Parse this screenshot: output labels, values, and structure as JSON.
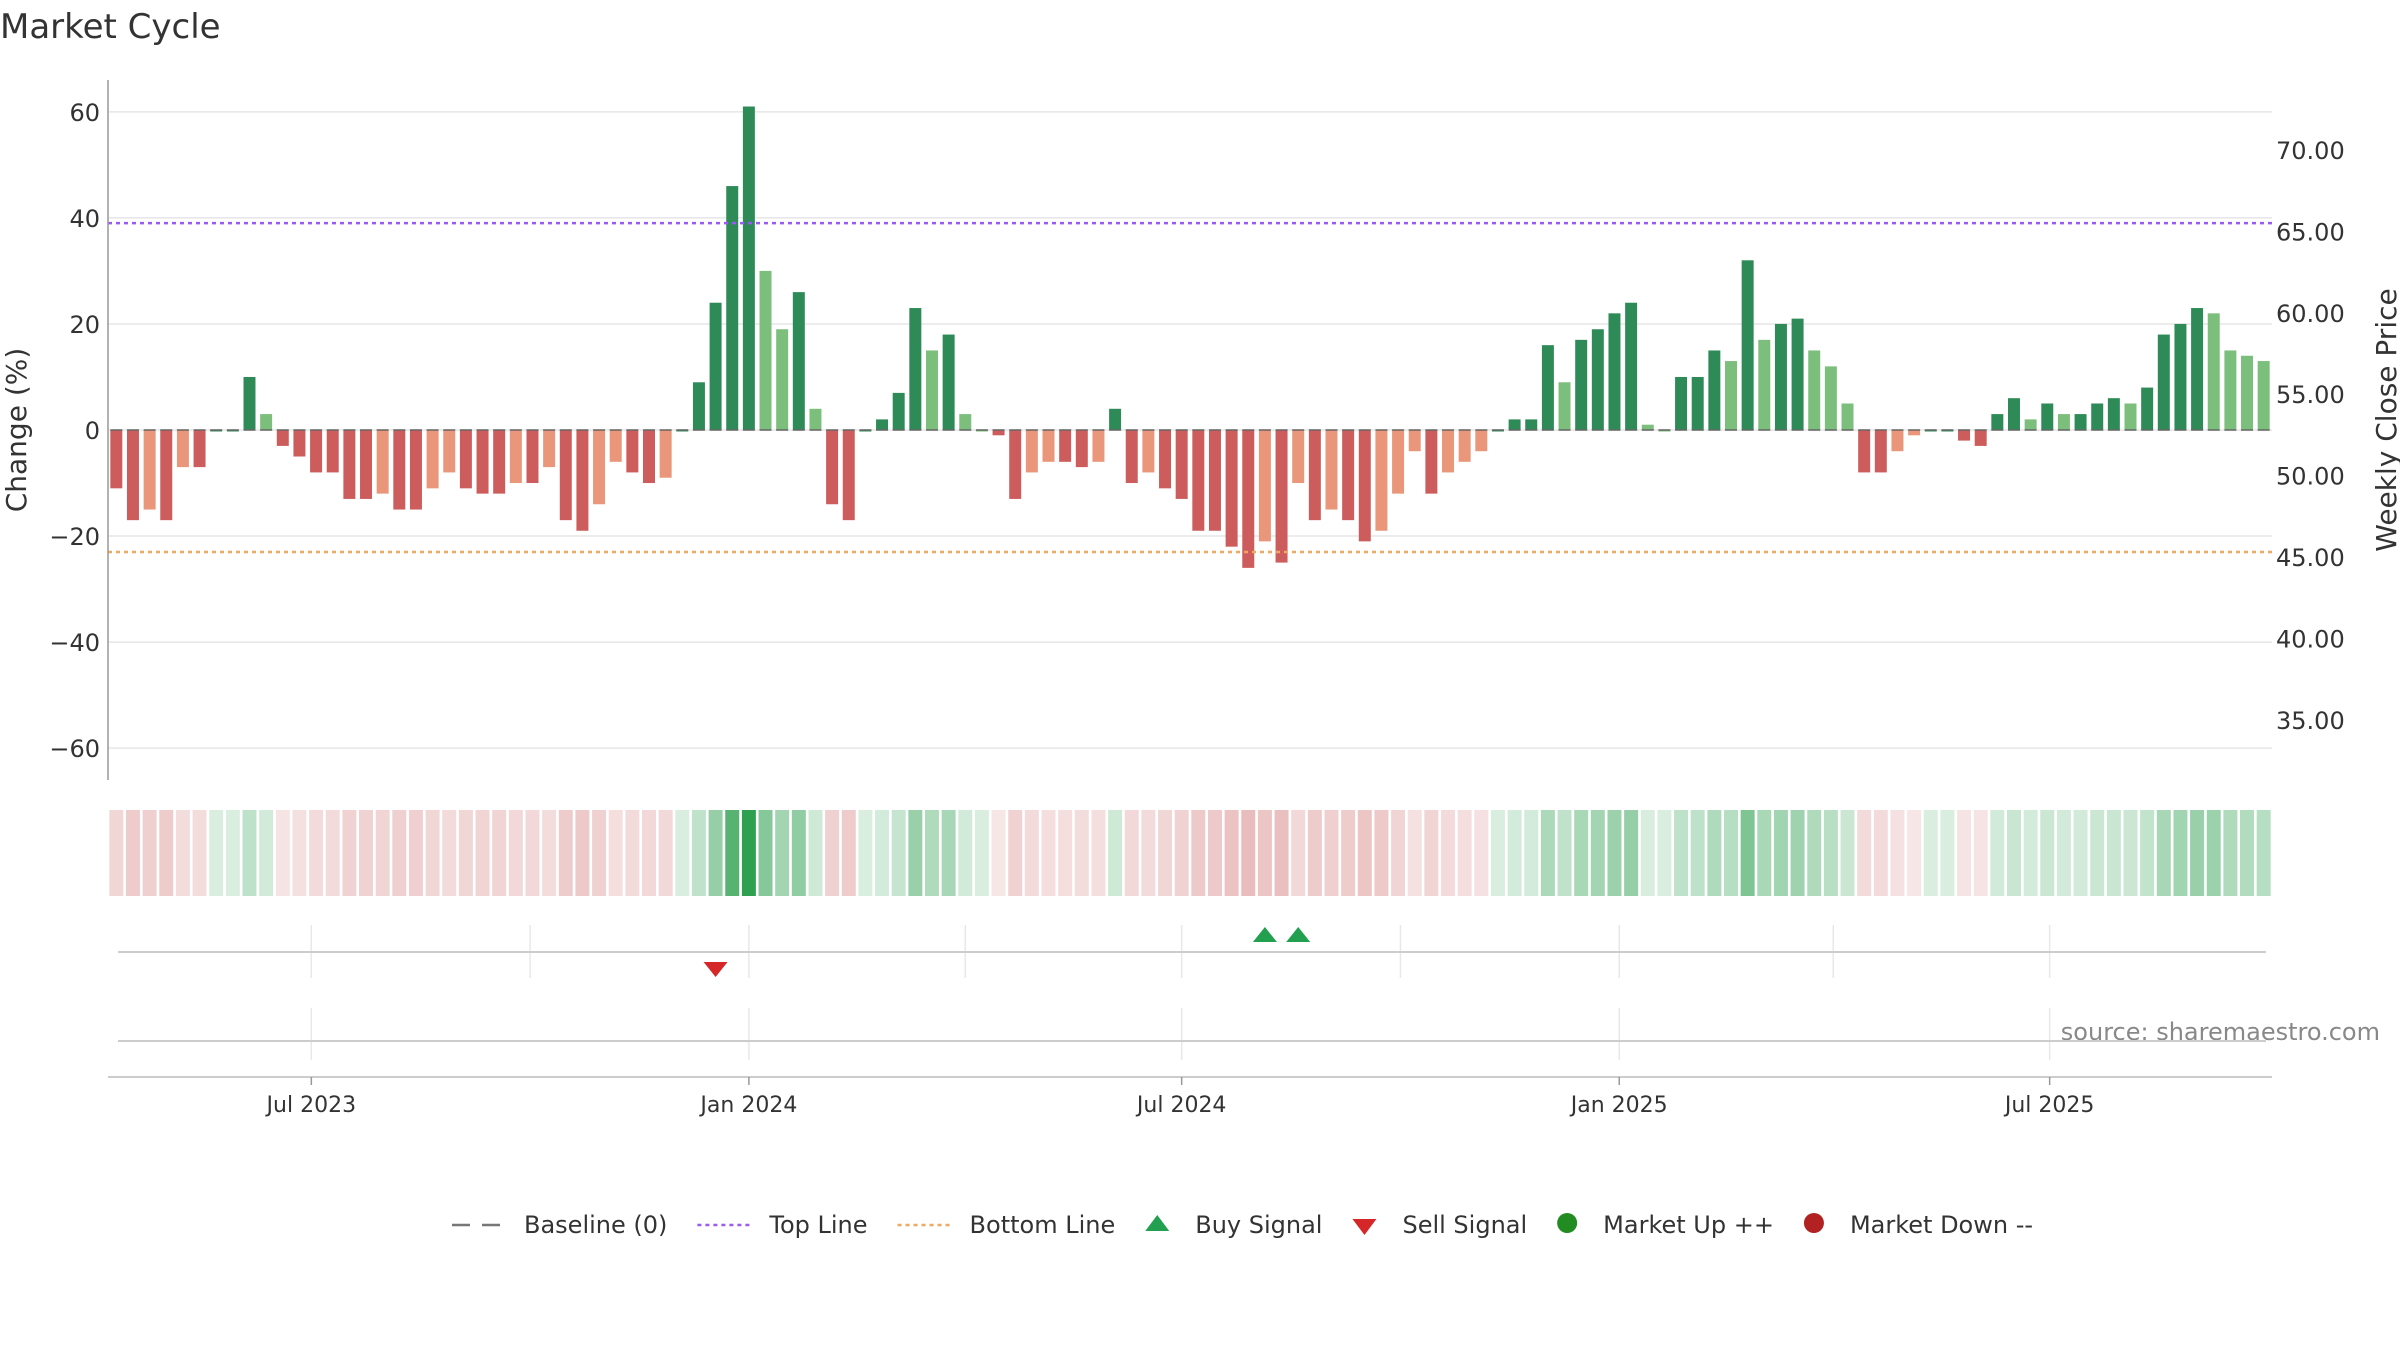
{
  "colors": {
    "strong_up": "#2e8b57",
    "light_up": "#7cbf7c",
    "strong_down": "#cd5c5c",
    "light_down": "#e9967a",
    "top_line": "#9b59f5",
    "bottom_line": "#f0a860",
    "buy": "#22a050",
    "sell": "#d62728",
    "market_up": "#228b22",
    "market_down": "#b22222",
    "grid": "#e6e6e6",
    "axis_text": "#333333"
  },
  "chart_data": {
    "type": "bar",
    "title": "Market Cycle",
    "ylabel": "Change (%)",
    "y2label": "Weekly Close Price",
    "ylim": [
      -66,
      66
    ],
    "y2lim": [
      31.3,
      74.3
    ],
    "yticks": [
      60,
      40,
      20,
      0,
      -20,
      -40,
      -60
    ],
    "yticklabels": [
      "60",
      "40",
      "20",
      "0",
      "−20",
      "−40",
      "−60"
    ],
    "y2ticks": [
      70,
      65,
      60,
      55,
      50,
      45,
      40,
      35
    ],
    "y2ticklabels": [
      "70.00",
      "65.00",
      "60.00",
      "55.00",
      "50.00",
      "45.00",
      "40.00",
      "35.00"
    ],
    "top_line": 39,
    "bottom_line": -23,
    "start_date": "2023-04-10",
    "xticks": [
      {
        "date": "2023-07-01",
        "label": "Jul 2023"
      },
      {
        "date": "2024-01-01",
        "label": "Jan 2024"
      },
      {
        "date": "2024-07-01",
        "label": "Jul 2024"
      },
      {
        "date": "2025-01-01",
        "label": "Jan 2025"
      },
      {
        "date": "2025-07-01",
        "label": "Jul 2025"
      }
    ],
    "signal_grid_dates": [
      "2023-07-01",
      "2023-10-01",
      "2024-01-01",
      "2024-04-01",
      "2024-07-01",
      "2024-10-01",
      "2025-01-01",
      "2025-04-01",
      "2025-07-01"
    ],
    "values": [
      -11,
      -17,
      -15,
      -17,
      -7,
      -7,
      0,
      0,
      10,
      3,
      -3,
      -5,
      -8,
      -8,
      -13,
      -13,
      -12,
      -15,
      -15,
      -11,
      -8,
      -11,
      -12,
      -12,
      -10,
      -10,
      -7,
      -17,
      -19,
      -14,
      -6,
      -8,
      -10,
      -9,
      0,
      9,
      24,
      46,
      61,
      30,
      19,
      26,
      4,
      -14,
      -17,
      0,
      2,
      7,
      23,
      15,
      18,
      3,
      0,
      -1,
      -13,
      -8,
      -6,
      -6,
      -7,
      -6,
      4,
      -10,
      -8,
      -11,
      -13,
      -19,
      -19,
      -22,
      -26,
      -21,
      -25,
      -10,
      -17,
      -15,
      -17,
      -21,
      -19,
      -12,
      -4,
      -12,
      -8,
      -6,
      -4,
      0,
      2,
      2,
      16,
      9,
      17,
      19,
      22,
      24,
      1,
      0,
      10,
      10,
      15,
      13,
      32,
      17,
      20,
      21,
      15,
      12,
      5,
      -8,
      -8,
      -4,
      -1,
      0,
      0,
      -2,
      -3,
      3,
      6,
      2,
      5,
      3,
      3,
      5,
      6,
      5,
      8,
      18,
      20,
      23,
      22,
      15,
      14,
      13
    ],
    "legend": [
      {
        "kind": "dash",
        "label": "Baseline (0)"
      },
      {
        "kind": "dotted-top",
        "label": "Top Line"
      },
      {
        "kind": "dotted-bottom",
        "label": "Bottom Line"
      },
      {
        "kind": "buy",
        "label": "Buy Signal"
      },
      {
        "kind": "sell",
        "label": "Sell Signal"
      },
      {
        "kind": "up",
        "label": "Market Up ++"
      },
      {
        "kind": "down",
        "label": "Market Down --"
      }
    ],
    "buy_signals": [
      "2024-08-05",
      "2024-08-19"
    ],
    "sell_signals": [
      "2023-12-18"
    ],
    "source": "source: sharemaestro.com"
  }
}
